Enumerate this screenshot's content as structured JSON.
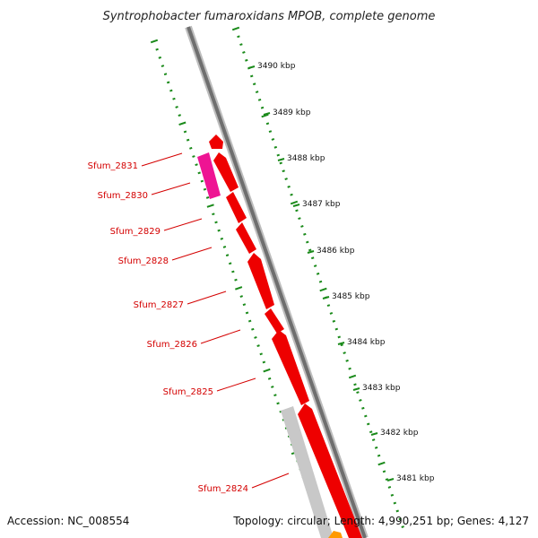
{
  "title": "Syntrophobacter fumaroxidans MPOB, complete genome",
  "footer": {
    "accession": "Accession: NC_008554",
    "stats": "Topology: circular; Length: 4,990,251 bp; Genes: 4,127"
  },
  "colors": {
    "backbone": "#8a8a8a",
    "gene_red": "#ee0000",
    "gene_magenta": "#ee1493",
    "gene_grey": "#c8c8c8",
    "gene_orange": "#ff9900",
    "tick_green": "#1a8a1a",
    "label_red": "#d40000"
  },
  "scale": [
    {
      "label": "3490 kbp"
    },
    {
      "label": "3489 kbp"
    },
    {
      "label": "3488 kbp"
    },
    {
      "label": "3487 kbp"
    },
    {
      "label": "3486 kbp"
    },
    {
      "label": "3485 kbp"
    },
    {
      "label": "3484 kbp"
    },
    {
      "label": "3483 kbp"
    },
    {
      "label": "3482 kbp"
    },
    {
      "label": "3481 kbp"
    }
  ],
  "genes": [
    {
      "label": "Sfum_2831"
    },
    {
      "label": "Sfum_2830"
    },
    {
      "label": "Sfum_2829"
    },
    {
      "label": "Sfum_2828"
    },
    {
      "label": "Sfum_2827"
    },
    {
      "label": "Sfum_2826"
    },
    {
      "label": "Sfum_2825"
    },
    {
      "label": "Sfum_2824"
    }
  ]
}
